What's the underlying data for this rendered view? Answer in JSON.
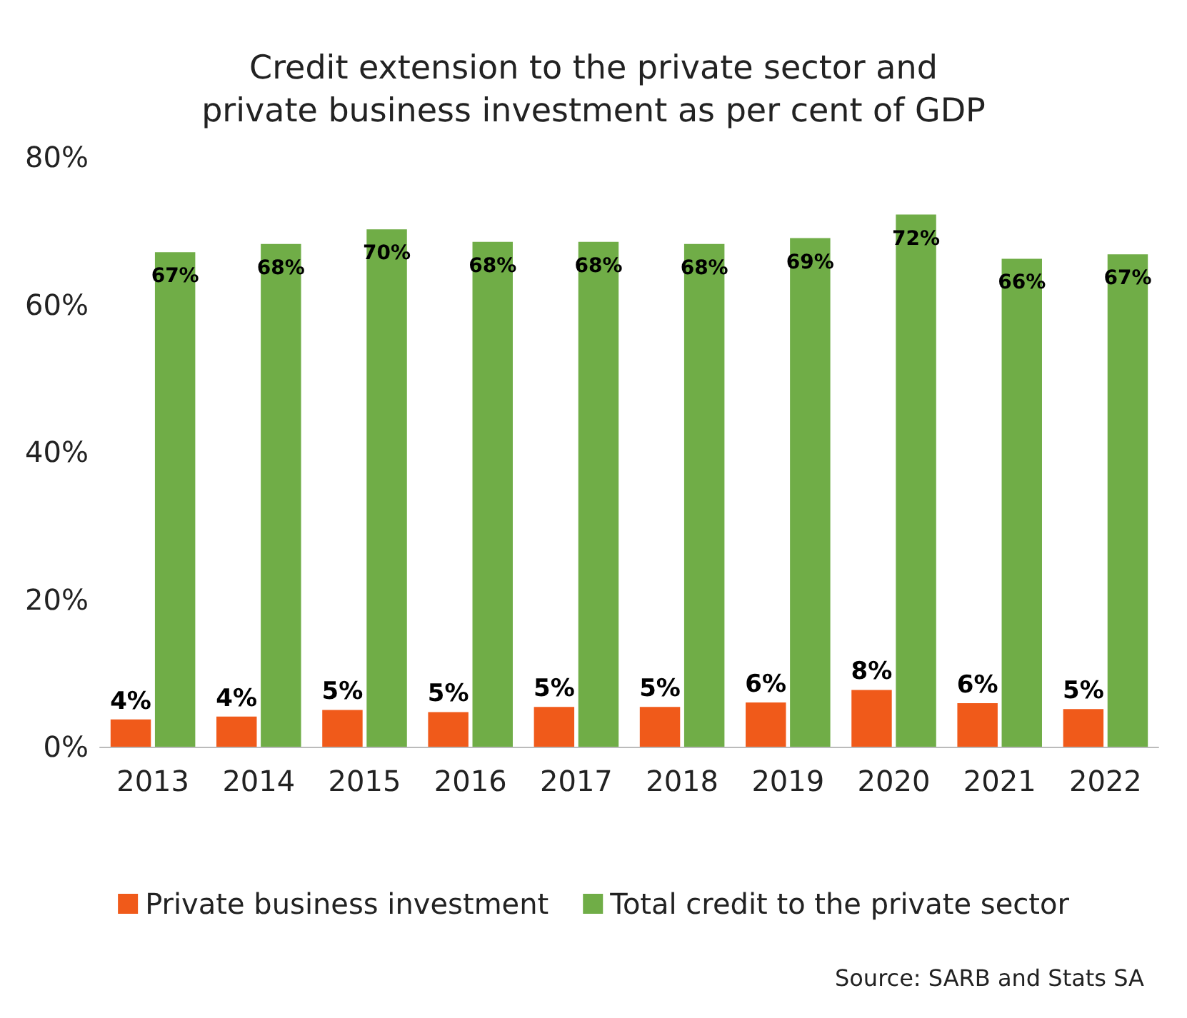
{
  "chart_data": {
    "type": "bar",
    "title": "Credit extension to the private sector and\nprivate business investment as per cent of GDP",
    "categories": [
      "2013",
      "2014",
      "2015",
      "2016",
      "2017",
      "2018",
      "2019",
      "2020",
      "2021",
      "2022"
    ],
    "series": [
      {
        "name": "Private business investment",
        "color": "#f05a1a",
        "values": [
          3.7,
          4.1,
          5.0,
          4.7,
          5.4,
          5.4,
          6.0,
          7.7,
          5.9,
          5.1
        ],
        "value_labels": [
          "4%",
          "4%",
          "5%",
          "5%",
          "5%",
          "5%",
          "6%",
          "8%",
          "6%",
          "5%"
        ]
      },
      {
        "name": "Total credit to the private sector",
        "color": "#70ad47",
        "values": [
          67.1,
          68.2,
          70.2,
          68.5,
          68.5,
          68.2,
          69.0,
          72.2,
          66.2,
          66.8
        ],
        "value_labels": [
          "67%",
          "68%",
          "70%",
          "68%",
          "68%",
          "68%",
          "69%",
          "72%",
          "66%",
          "67%"
        ]
      }
    ],
    "ylim": [
      0,
      80
    ],
    "yticks": [
      {
        "value": 0,
        "label": "0%"
      },
      {
        "value": 20,
        "label": "20%"
      },
      {
        "value": 40,
        "label": "40%"
      },
      {
        "value": 60,
        "label": "60%"
      },
      {
        "value": 80,
        "label": "80%"
      }
    ],
    "grid": false,
    "legend": "bottom",
    "annotations": [
      "Source: SARB and Stats SA"
    ]
  }
}
